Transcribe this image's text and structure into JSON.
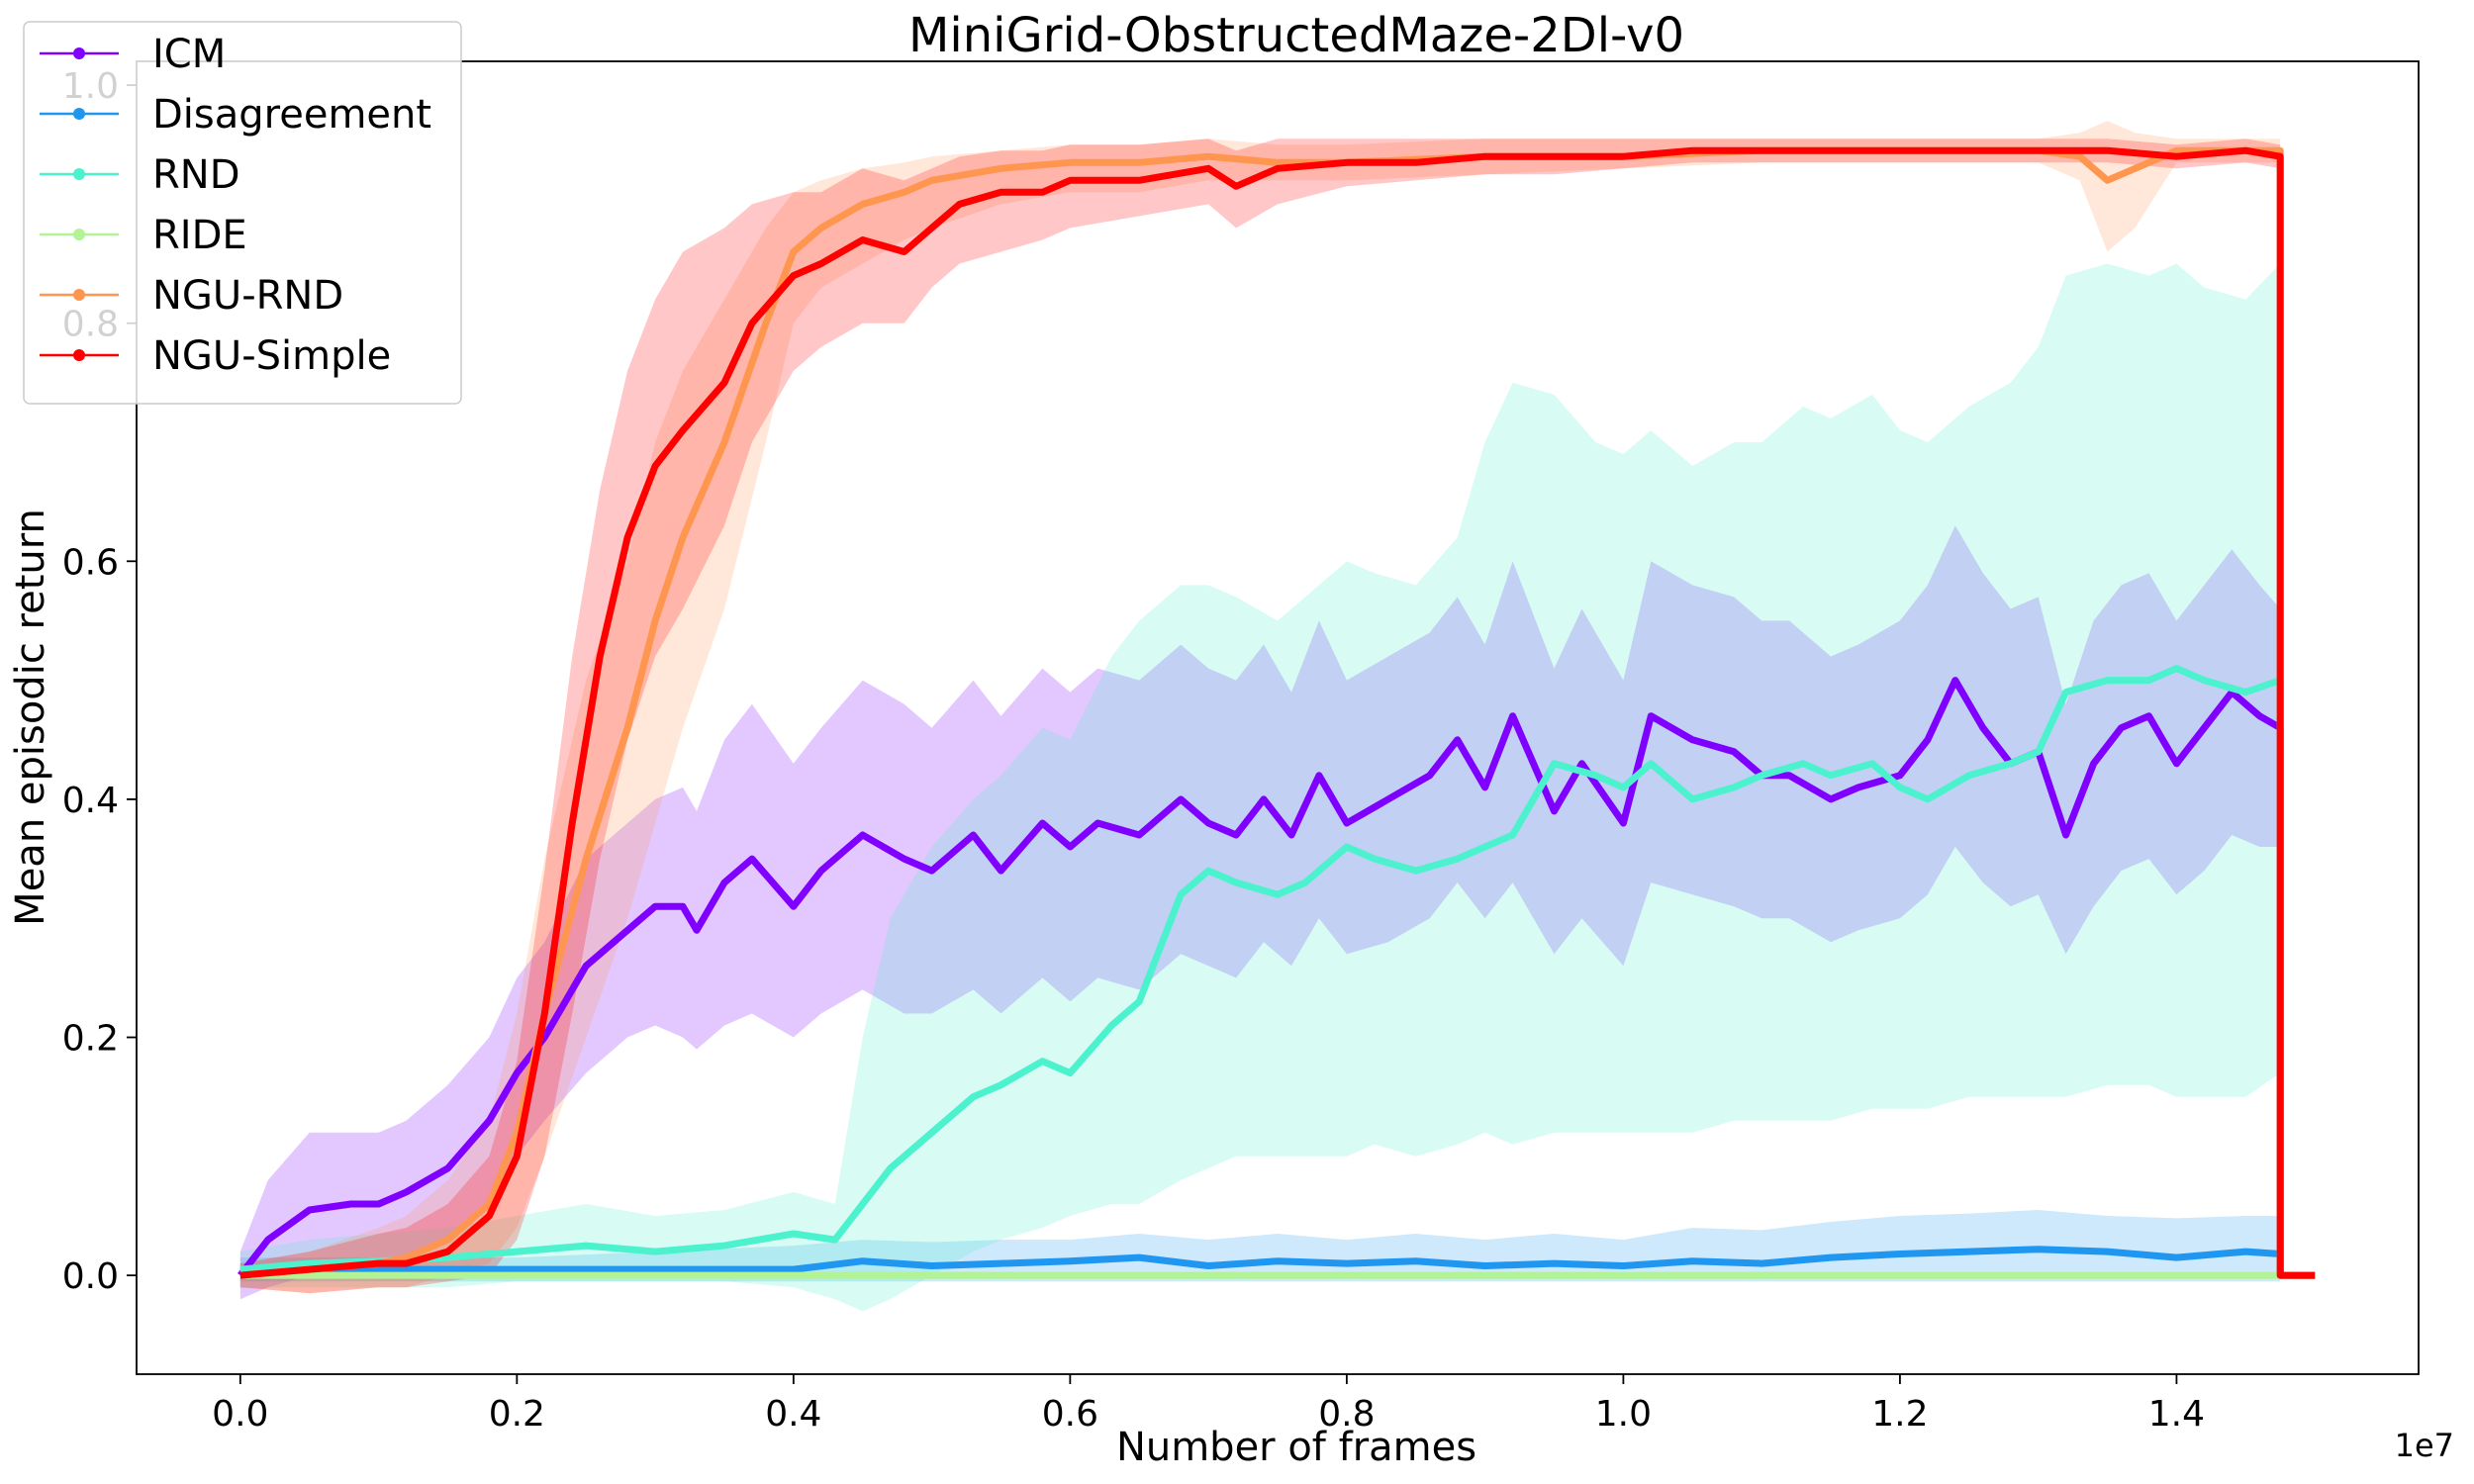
{
  "chart_data": {
    "type": "line",
    "title": "MiniGrid-ObstructedMaze-2Dl-v0",
    "xlabel": "Number of frames",
    "ylabel": "Mean episodic return",
    "x_offset_label": "1e7",
    "xlim": [
      -0.075,
      1.575
    ],
    "ylim": [
      -0.083,
      1.02
    ],
    "x_ticks": [
      0.0,
      0.2,
      0.4,
      0.6,
      0.8,
      1.0,
      1.2,
      1.4
    ],
    "x_tick_labels": [
      "0.0",
      "0.2",
      "0.4",
      "0.6",
      "0.8",
      "1.0",
      "1.2",
      "1.4"
    ],
    "y_ticks": [
      0.0,
      0.2,
      0.4,
      0.6,
      0.8,
      1.0
    ],
    "y_tick_labels": [
      "0.0",
      "0.2",
      "0.4",
      "0.6",
      "0.8",
      "1.0"
    ],
    "grid": false,
    "legend_position": "top-left",
    "series": [
      {
        "name": "ICM",
        "color": "#8000ff",
        "fill_opacity": 0.22,
        "x": [
          0.0,
          0.02,
          0.05,
          0.08,
          0.1,
          0.12,
          0.15,
          0.18,
          0.2,
          0.22,
          0.25,
          0.28,
          0.3,
          0.32,
          0.33,
          0.35,
          0.37,
          0.4,
          0.42,
          0.45,
          0.48,
          0.5,
          0.53,
          0.55,
          0.58,
          0.6,
          0.62,
          0.65,
          0.68,
          0.7,
          0.72,
          0.74,
          0.76,
          0.78,
          0.8,
          0.83,
          0.86,
          0.88,
          0.9,
          0.92,
          0.95,
          0.97,
          1.0,
          1.02,
          1.05,
          1.08,
          1.1,
          1.12,
          1.15,
          1.17,
          1.2,
          1.22,
          1.24,
          1.26,
          1.28,
          1.3,
          1.32,
          1.34,
          1.36,
          1.38,
          1.4,
          1.42,
          1.44,
          1.46,
          1.475
        ],
        "y": [
          0.0,
          0.03,
          0.055,
          0.06,
          0.06,
          0.07,
          0.09,
          0.13,
          0.17,
          0.2,
          0.26,
          0.29,
          0.31,
          0.31,
          0.29,
          0.33,
          0.35,
          0.31,
          0.34,
          0.37,
          0.35,
          0.34,
          0.37,
          0.34,
          0.38,
          0.36,
          0.38,
          0.37,
          0.4,
          0.38,
          0.37,
          0.4,
          0.37,
          0.42,
          0.38,
          0.4,
          0.42,
          0.45,
          0.41,
          0.47,
          0.39,
          0.43,
          0.38,
          0.47,
          0.45,
          0.44,
          0.42,
          0.42,
          0.4,
          0.41,
          0.42,
          0.45,
          0.5,
          0.46,
          0.43,
          0.44,
          0.37,
          0.43,
          0.46,
          0.47,
          0.43,
          0.46,
          0.49,
          0.47,
          0.46
        ],
        "lower": [
          -0.02,
          -0.01,
          0.0,
          0.0,
          0.0,
          0.01,
          0.03,
          0.06,
          0.1,
          0.13,
          0.17,
          0.2,
          0.21,
          0.2,
          0.19,
          0.21,
          0.22,
          0.2,
          0.22,
          0.24,
          0.22,
          0.22,
          0.24,
          0.22,
          0.25,
          0.23,
          0.25,
          0.24,
          0.27,
          0.26,
          0.25,
          0.28,
          0.26,
          0.3,
          0.27,
          0.28,
          0.3,
          0.33,
          0.3,
          0.33,
          0.27,
          0.3,
          0.26,
          0.33,
          0.32,
          0.31,
          0.3,
          0.3,
          0.28,
          0.29,
          0.3,
          0.32,
          0.36,
          0.33,
          0.31,
          0.32,
          0.27,
          0.31,
          0.34,
          0.35,
          0.32,
          0.34,
          0.37,
          0.36,
          0.36
        ],
        "upper": [
          0.02,
          0.08,
          0.12,
          0.12,
          0.12,
          0.13,
          0.16,
          0.2,
          0.25,
          0.28,
          0.35,
          0.38,
          0.4,
          0.41,
          0.39,
          0.45,
          0.48,
          0.43,
          0.46,
          0.5,
          0.48,
          0.46,
          0.5,
          0.47,
          0.51,
          0.49,
          0.51,
          0.5,
          0.53,
          0.51,
          0.5,
          0.53,
          0.49,
          0.55,
          0.5,
          0.52,
          0.54,
          0.57,
          0.53,
          0.6,
          0.51,
          0.56,
          0.5,
          0.6,
          0.58,
          0.57,
          0.55,
          0.55,
          0.52,
          0.53,
          0.55,
          0.58,
          0.63,
          0.59,
          0.56,
          0.57,
          0.48,
          0.55,
          0.58,
          0.59,
          0.55,
          0.58,
          0.61,
          0.58,
          0.56
        ]
      },
      {
        "name": "Disagreement",
        "color": "#1f96f0",
        "fill_opacity": 0.22,
        "x": [
          0.0,
          0.1,
          0.2,
          0.3,
          0.4,
          0.45,
          0.5,
          0.55,
          0.6,
          0.65,
          0.7,
          0.75,
          0.8,
          0.85,
          0.9,
          0.95,
          1.0,
          1.05,
          1.1,
          1.15,
          1.2,
          1.25,
          1.3,
          1.35,
          1.4,
          1.45,
          1.475
        ],
        "y": [
          0.005,
          0.005,
          0.005,
          0.005,
          0.005,
          0.012,
          0.008,
          0.01,
          0.012,
          0.015,
          0.008,
          0.012,
          0.01,
          0.012,
          0.008,
          0.01,
          0.008,
          0.012,
          0.01,
          0.015,
          0.018,
          0.02,
          0.022,
          0.02,
          0.015,
          0.02,
          0.018
        ],
        "lower": [
          -0.005,
          -0.005,
          -0.005,
          -0.005,
          -0.005,
          -0.005,
          -0.005,
          -0.005,
          -0.005,
          -0.005,
          -0.005,
          -0.005,
          -0.005,
          -0.005,
          -0.005,
          -0.005,
          -0.005,
          -0.005,
          -0.005,
          -0.005,
          -0.005,
          -0.005,
          -0.005,
          -0.005,
          -0.005,
          -0.005,
          -0.005
        ],
        "upper": [
          0.015,
          0.015,
          0.015,
          0.02,
          0.025,
          0.03,
          0.028,
          0.03,
          0.03,
          0.035,
          0.03,
          0.035,
          0.03,
          0.035,
          0.03,
          0.035,
          0.03,
          0.04,
          0.038,
          0.045,
          0.05,
          0.052,
          0.055,
          0.05,
          0.048,
          0.05,
          0.05
        ]
      },
      {
        "name": "RND",
        "color": "#4cf2ce",
        "fill_opacity": 0.22,
        "x": [
          0.0,
          0.05,
          0.1,
          0.15,
          0.2,
          0.25,
          0.3,
          0.35,
          0.4,
          0.43,
          0.45,
          0.47,
          0.5,
          0.53,
          0.55,
          0.58,
          0.6,
          0.63,
          0.65,
          0.68,
          0.7,
          0.72,
          0.75,
          0.77,
          0.8,
          0.82,
          0.85,
          0.88,
          0.9,
          0.92,
          0.95,
          0.98,
          1.0,
          1.02,
          1.05,
          1.08,
          1.1,
          1.13,
          1.15,
          1.18,
          1.2,
          1.22,
          1.25,
          1.28,
          1.3,
          1.32,
          1.35,
          1.38,
          1.4,
          1.42,
          1.45,
          1.475
        ],
        "y": [
          0.005,
          0.01,
          0.012,
          0.015,
          0.02,
          0.025,
          0.02,
          0.025,
          0.035,
          0.03,
          0.06,
          0.09,
          0.12,
          0.15,
          0.16,
          0.18,
          0.17,
          0.21,
          0.23,
          0.32,
          0.34,
          0.33,
          0.32,
          0.33,
          0.36,
          0.35,
          0.34,
          0.35,
          0.36,
          0.37,
          0.43,
          0.42,
          0.41,
          0.43,
          0.4,
          0.41,
          0.42,
          0.43,
          0.42,
          0.43,
          0.41,
          0.4,
          0.42,
          0.43,
          0.44,
          0.49,
          0.5,
          0.5,
          0.51,
          0.5,
          0.49,
          0.5
        ],
        "lower": [
          -0.01,
          -0.01,
          -0.01,
          -0.01,
          -0.005,
          -0.005,
          -0.005,
          -0.005,
          -0.01,
          -0.02,
          -0.03,
          -0.02,
          0.0,
          0.02,
          0.03,
          0.04,
          0.05,
          0.06,
          0.06,
          0.08,
          0.09,
          0.1,
          0.1,
          0.1,
          0.1,
          0.11,
          0.1,
          0.11,
          0.12,
          0.11,
          0.12,
          0.12,
          0.12,
          0.12,
          0.12,
          0.13,
          0.13,
          0.13,
          0.13,
          0.14,
          0.14,
          0.14,
          0.15,
          0.15,
          0.15,
          0.15,
          0.16,
          0.16,
          0.15,
          0.15,
          0.15,
          0.17
        ],
        "upper": [
          0.02,
          0.03,
          0.035,
          0.04,
          0.05,
          0.06,
          0.05,
          0.055,
          0.07,
          0.06,
          0.2,
          0.3,
          0.36,
          0.4,
          0.42,
          0.46,
          0.45,
          0.52,
          0.55,
          0.58,
          0.58,
          0.57,
          0.55,
          0.57,
          0.6,
          0.59,
          0.58,
          0.62,
          0.7,
          0.75,
          0.74,
          0.7,
          0.69,
          0.71,
          0.68,
          0.7,
          0.7,
          0.73,
          0.72,
          0.74,
          0.71,
          0.7,
          0.73,
          0.75,
          0.78,
          0.84,
          0.85,
          0.84,
          0.85,
          0.83,
          0.82,
          0.85
        ]
      },
      {
        "name": "RIDE",
        "color": "#b2f396",
        "fill_opacity": 0.22,
        "x": [
          0.0,
          0.3,
          0.6,
          0.9,
          1.2,
          1.475
        ],
        "y": [
          0.0,
          0.0,
          0.0,
          0.0,
          0.0,
          0.0
        ],
        "lower": [
          -0.003,
          -0.003,
          -0.003,
          -0.003,
          -0.003,
          -0.003
        ],
        "upper": [
          0.003,
          0.003,
          0.003,
          0.003,
          0.003,
          0.003
        ]
      },
      {
        "name": "NGU-RND",
        "color": "#ff9650",
        "fill_opacity": 0.22,
        "x": [
          0.0,
          0.05,
          0.1,
          0.12,
          0.15,
          0.18,
          0.2,
          0.22,
          0.25,
          0.28,
          0.3,
          0.32,
          0.35,
          0.38,
          0.4,
          0.42,
          0.45,
          0.48,
          0.5,
          0.55,
          0.6,
          0.65,
          0.7,
          0.75,
          0.8,
          0.9,
          1.0,
          1.1,
          1.2,
          1.3,
          1.33,
          1.35,
          1.37,
          1.4,
          1.45,
          1.475
        ],
        "y": [
          0.0,
          0.005,
          0.01,
          0.015,
          0.03,
          0.06,
          0.12,
          0.22,
          0.35,
          0.46,
          0.55,
          0.62,
          0.7,
          0.8,
          0.86,
          0.88,
          0.9,
          0.91,
          0.92,
          0.93,
          0.935,
          0.935,
          0.94,
          0.935,
          0.935,
          0.94,
          0.94,
          0.945,
          0.945,
          0.945,
          0.94,
          0.92,
          0.93,
          0.945,
          0.945,
          0.945
        ],
        "lower": [
          -0.01,
          -0.015,
          -0.01,
          -0.01,
          0.0,
          0.01,
          0.04,
          0.1,
          0.2,
          0.3,
          0.38,
          0.46,
          0.56,
          0.7,
          0.8,
          0.83,
          0.85,
          0.87,
          0.88,
          0.9,
          0.91,
          0.91,
          0.92,
          0.92,
          0.92,
          0.925,
          0.93,
          0.935,
          0.935,
          0.935,
          0.92,
          0.86,
          0.88,
          0.935,
          0.935,
          0.935
        ],
        "upper": [
          0.01,
          0.02,
          0.04,
          0.05,
          0.08,
          0.13,
          0.22,
          0.35,
          0.5,
          0.6,
          0.7,
          0.76,
          0.82,
          0.88,
          0.91,
          0.92,
          0.93,
          0.935,
          0.94,
          0.945,
          0.95,
          0.95,
          0.955,
          0.95,
          0.95,
          0.955,
          0.955,
          0.955,
          0.955,
          0.955,
          0.96,
          0.97,
          0.96,
          0.955,
          0.955,
          0.955
        ]
      },
      {
        "name": "NGU-Simple",
        "color": "#ff0000",
        "fill_opacity": 0.22,
        "x": [
          0.0,
          0.05,
          0.1,
          0.12,
          0.15,
          0.18,
          0.2,
          0.22,
          0.24,
          0.26,
          0.28,
          0.3,
          0.32,
          0.35,
          0.37,
          0.4,
          0.42,
          0.45,
          0.48,
          0.5,
          0.52,
          0.55,
          0.58,
          0.6,
          0.65,
          0.7,
          0.72,
          0.75,
          0.8,
          0.85,
          0.9,
          0.95,
          1.0,
          1.05,
          1.1,
          1.15,
          1.2,
          1.25,
          1.3,
          1.35,
          1.4,
          1.45,
          1.475
        ],
        "y": [
          0.0,
          0.005,
          0.01,
          0.01,
          0.02,
          0.05,
          0.1,
          0.22,
          0.38,
          0.52,
          0.62,
          0.68,
          0.71,
          0.75,
          0.8,
          0.84,
          0.85,
          0.87,
          0.86,
          0.88,
          0.9,
          0.91,
          0.91,
          0.92,
          0.92,
          0.93,
          0.915,
          0.93,
          0.935,
          0.935,
          0.94,
          0.94,
          0.94,
          0.945,
          0.945,
          0.945,
          0.945,
          0.945,
          0.945,
          0.945,
          0.94,
          0.945,
          0.94
        ],
        "lower": [
          -0.01,
          -0.015,
          -0.01,
          -0.01,
          -0.005,
          0.0,
          0.03,
          0.1,
          0.22,
          0.35,
          0.45,
          0.52,
          0.56,
          0.63,
          0.7,
          0.76,
          0.78,
          0.8,
          0.8,
          0.83,
          0.85,
          0.86,
          0.87,
          0.88,
          0.89,
          0.9,
          0.88,
          0.9,
          0.915,
          0.92,
          0.925,
          0.925,
          0.93,
          0.935,
          0.935,
          0.935,
          0.935,
          0.935,
          0.935,
          0.935,
          0.93,
          0.935,
          0.93
        ],
        "upper": [
          0.01,
          0.02,
          0.035,
          0.04,
          0.06,
          0.1,
          0.18,
          0.34,
          0.52,
          0.66,
          0.76,
          0.82,
          0.86,
          0.88,
          0.9,
          0.91,
          0.91,
          0.93,
          0.92,
          0.93,
          0.94,
          0.945,
          0.945,
          0.95,
          0.95,
          0.955,
          0.945,
          0.955,
          0.955,
          0.955,
          0.955,
          0.955,
          0.955,
          0.955,
          0.955,
          0.955,
          0.955,
          0.955,
          0.955,
          0.955,
          0.95,
          0.955,
          0.95
        ]
      }
    ]
  }
}
